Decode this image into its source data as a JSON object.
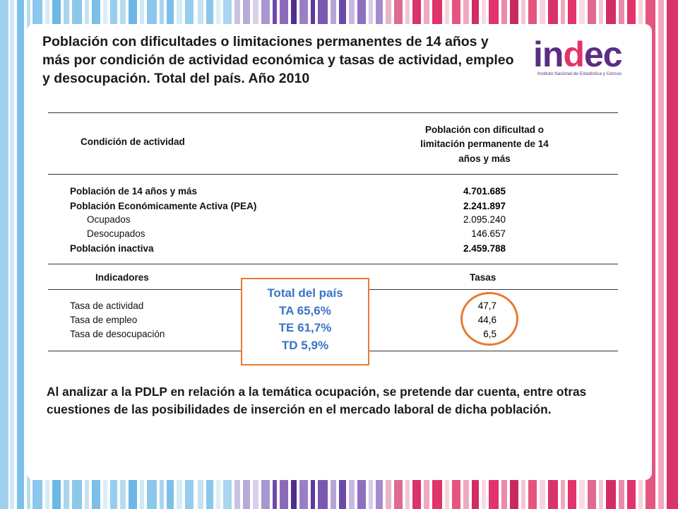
{
  "slide": {
    "title": "Población con dificultades o limitaciones permanentes de 14 años y más por condición de actividad económica y tasas de actividad, empleo y desocupación. Total del país. Año 2010",
    "paragraph": "Al analizar a la PDLP en relación a la temática ocupación, se pretende dar cuenta, entre otras cuestiones de las posibilidades de inserción en el mercado laboral de dicha población."
  },
  "logo": {
    "word_main": "in",
    "word_accent": "d",
    "word_tail": "ec",
    "subtitle": "Instituto Nacional de Estadística y Censos",
    "colors": {
      "primary": "#5b2d83",
      "accent": "#e2336b"
    }
  },
  "table": {
    "header_left": "Condición de actividad",
    "header_right_line1": "Población con dificultad o",
    "header_right_line2": "limitación permanente de 14",
    "header_right_line3": "años y más",
    "rows": [
      {
        "label": "Población de 14 años y más",
        "value": "4.701.685"
      },
      {
        "label": "Población Económicamente Activa (PEA)",
        "value": "2.241.897"
      },
      {
        "label": "Ocupados",
        "value": "2.095.240"
      },
      {
        "label": "Desocupados",
        "value": "146.657"
      },
      {
        "label": "Población inactiva",
        "value": "2.459.788"
      }
    ],
    "indicators_header": "Indicadores",
    "rates_header": "Tasas",
    "indicators": [
      {
        "label": "Tasa de actividad",
        "value": "47,7"
      },
      {
        "label": "Tasa de empleo",
        "value": "44,6"
      },
      {
        "label": "Tasa de desocupación",
        "value": "6,5"
      }
    ]
  },
  "callout": {
    "line1": "Total del país",
    "line2": "TA 65,6%",
    "line3": "TE 61,7%",
    "line4": "TD 5,9%",
    "border_color": "#e87a32",
    "text_color": "#3a73c6"
  }
}
